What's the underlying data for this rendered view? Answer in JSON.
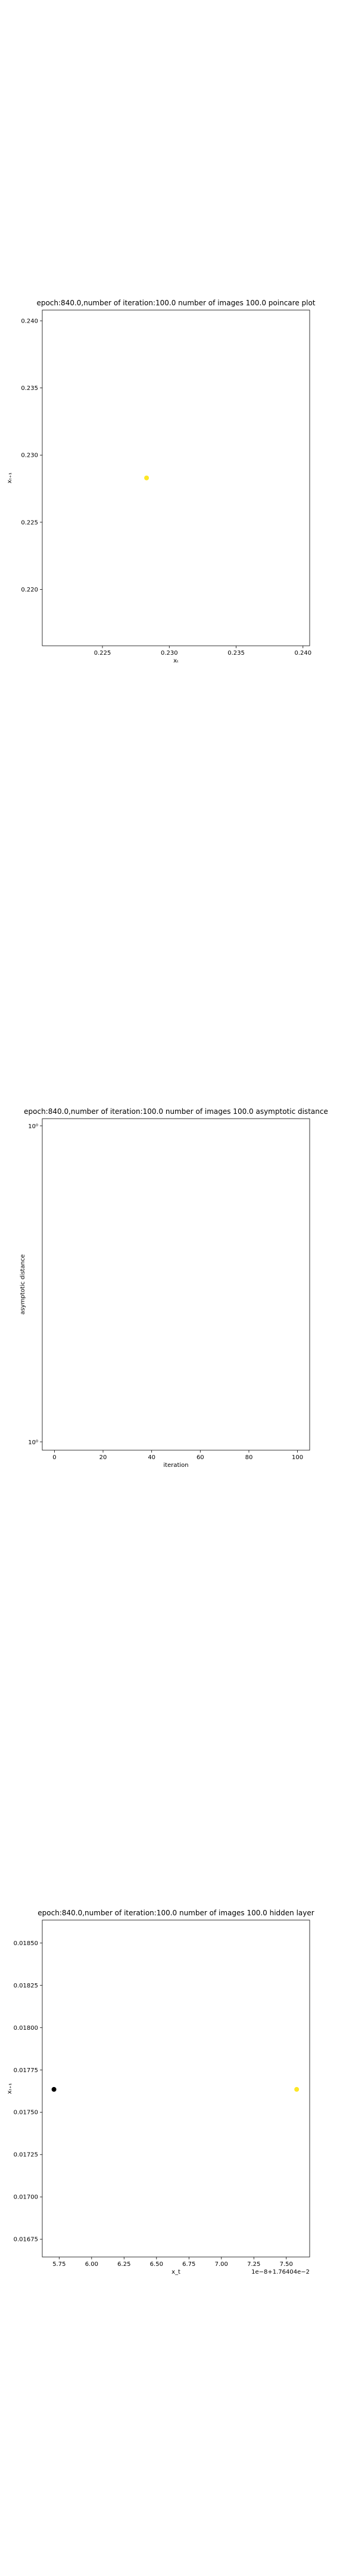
{
  "chart_data": [
    {
      "type": "scatter",
      "title": "epoch:840.0,number of iteration:100.0 number of images 100.0 poincare plot",
      "xlabel": "xₜ",
      "ylabel": "xₜ₊₁",
      "xlim": [
        0.2205,
        0.2405
      ],
      "ylim": [
        0.2158,
        0.2408
      ],
      "xticks": [
        0.225,
        0.23,
        0.235,
        0.24
      ],
      "xtick_labels": [
        "0.225",
        "0.230",
        "0.235",
        "0.240"
      ],
      "yticks": [
        0.22,
        0.225,
        0.23,
        0.235,
        0.24
      ],
      "ytick_labels": [
        "0.220",
        "0.225",
        "0.230",
        "0.235",
        "0.240"
      ],
      "points": [
        {
          "x": 0.2283,
          "y": 0.2283,
          "color": "#fde725"
        }
      ]
    },
    {
      "type": "line",
      "title": "epoch:840.0,number of iteration:100.0  number of images 100.0 asymptotic distance",
      "xlabel": "iteration",
      "ylabel": "asymptotic distance",
      "yscale": "log",
      "xlim": [
        -5,
        105
      ],
      "xticks": [
        0,
        20,
        40,
        60,
        80,
        100
      ],
      "xtick_labels": [
        "0",
        "20",
        "40",
        "60",
        "80",
        "100"
      ],
      "ytick_labels": [
        "10⁰",
        "10⁰"
      ],
      "series": []
    },
    {
      "type": "scatter",
      "title": "epoch:840.0,number of iteration:100.0  number of images 100.0 hidden layer",
      "xlabel": "x_t",
      "ylabel": "xₜ₊₁",
      "offset_text": "1e−8+1.76404e−2",
      "xlim": [
        5.62,
        7.68
      ],
      "ylim": [
        0.016645,
        0.018635
      ],
      "xticks": [
        5.75,
        6.0,
        6.25,
        6.5,
        6.75,
        7.0,
        7.25,
        7.5
      ],
      "xtick_labels": [
        "5.75",
        "6.00",
        "6.25",
        "6.50",
        "6.75",
        "7.00",
        "7.25",
        "7.50"
      ],
      "yticks": [
        0.01675,
        0.017,
        0.01725,
        0.0175,
        0.01775,
        0.018,
        0.01825,
        0.0185
      ],
      "ytick_labels": [
        "0.01675",
        "0.01700",
        "0.01725",
        "0.01750",
        "0.01775",
        "0.01800",
        "0.01825",
        "0.01850"
      ],
      "points": [
        {
          "x": 5.71,
          "y": 0.017635,
          "color": "#000000"
        },
        {
          "x": 7.58,
          "y": 0.017635,
          "color": "#fde725"
        }
      ]
    }
  ]
}
